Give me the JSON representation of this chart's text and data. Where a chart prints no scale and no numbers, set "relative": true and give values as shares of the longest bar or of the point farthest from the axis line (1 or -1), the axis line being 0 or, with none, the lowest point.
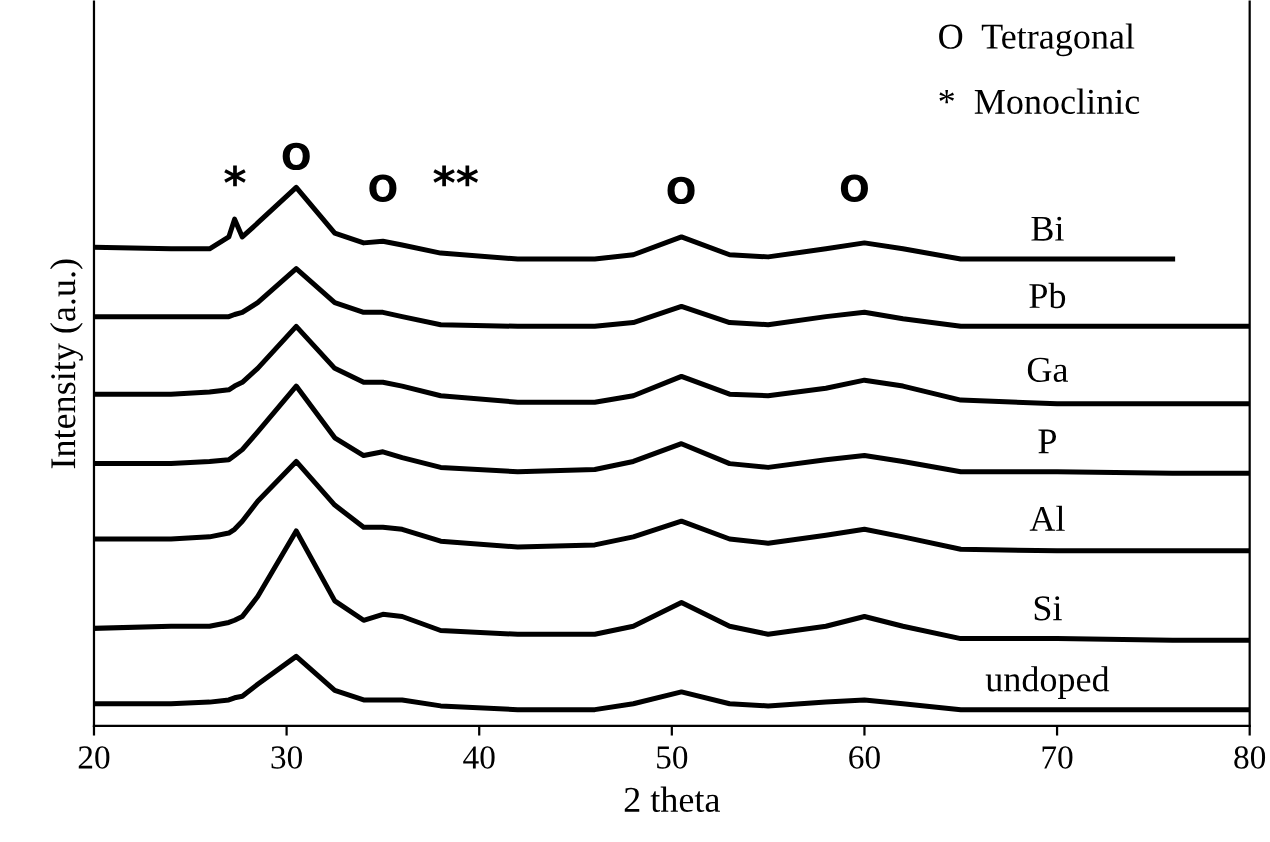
{
  "chart_data": {
    "type": "line",
    "relative": true,
    "xlabel": "2 theta",
    "ylabel": "Intensity (a.u.)",
    "xlim": [
      20,
      80
    ],
    "xticks": [
      20,
      30,
      40,
      50,
      60,
      70,
      80
    ],
    "grid": false,
    "marker": "none",
    "line_style": "solid",
    "x": [
      20,
      24,
      26,
      27,
      27.3,
      27.7,
      28.5,
      30.5,
      32.5,
      34,
      35,
      36,
      38,
      42,
      46,
      48,
      50.5,
      53,
      55,
      58,
      60,
      62,
      65,
      70,
      76,
      80
    ],
    "series": [
      {
        "name": "Bi",
        "color": "#000000",
        "values": [
          0.889,
          0.886,
          0.886,
          0.908,
          0.941,
          0.908,
          0.934,
          1.0,
          0.915,
          0.897,
          0.9,
          0.893,
          0.878,
          0.867,
          0.867,
          0.875,
          0.908,
          0.875,
          0.871,
          0.886,
          0.897,
          0.886,
          0.867,
          0.867,
          0.867,
          null
        ]
      },
      {
        "name": "Pb",
        "color": "#000000",
        "values": [
          0.76,
          0.76,
          0.76,
          0.76,
          0.764,
          0.768,
          0.786,
          0.849,
          0.786,
          0.768,
          0.768,
          0.76,
          0.745,
          0.742,
          0.742,
          0.749,
          0.779,
          0.749,
          0.745,
          0.76,
          0.768,
          0.756,
          0.742,
          0.742,
          0.742,
          0.742
        ]
      },
      {
        "name": "Ga",
        "color": "#000000",
        "values": [
          0.616,
          0.616,
          0.62,
          0.624,
          0.631,
          0.638,
          0.664,
          0.742,
          0.664,
          0.638,
          0.638,
          0.631,
          0.613,
          0.601,
          0.601,
          0.613,
          0.649,
          0.616,
          0.613,
          0.627,
          0.642,
          0.631,
          0.605,
          0.598,
          0.598,
          0.598
        ]
      },
      {
        "name": "P",
        "color": "#000000",
        "values": [
          0.487,
          0.487,
          0.491,
          0.494,
          0.502,
          0.513,
          0.546,
          0.631,
          0.535,
          0.502,
          0.509,
          0.498,
          0.48,
          0.472,
          0.476,
          0.491,
          0.524,
          0.487,
          0.48,
          0.494,
          0.502,
          0.491,
          0.472,
          0.472,
          0.469,
          0.469
        ]
      },
      {
        "name": "Al",
        "color": "#000000",
        "values": [
          0.347,
          0.347,
          0.351,
          0.358,
          0.365,
          0.38,
          0.417,
          0.491,
          0.41,
          0.369,
          0.369,
          0.365,
          0.343,
          0.332,
          0.336,
          0.351,
          0.38,
          0.347,
          0.339,
          0.354,
          0.365,
          0.351,
          0.328,
          0.325,
          0.325,
          0.325
        ]
      },
      {
        "name": "Si",
        "color": "#000000",
        "values": [
          0.181,
          0.185,
          0.185,
          0.192,
          0.196,
          0.203,
          0.24,
          0.362,
          0.232,
          0.196,
          0.207,
          0.203,
          0.177,
          0.17,
          0.17,
          0.185,
          0.229,
          0.185,
          0.17,
          0.185,
          0.203,
          0.185,
          0.162,
          0.162,
          0.159,
          0.159
        ]
      },
      {
        "name": "undoped",
        "color": "#000000",
        "values": [
          0.041,
          0.041,
          0.044,
          0.048,
          0.052,
          0.055,
          0.077,
          0.129,
          0.066,
          0.048,
          0.048,
          0.048,
          0.037,
          0.03,
          0.03,
          0.041,
          0.063,
          0.041,
          0.037,
          0.044,
          0.048,
          0.041,
          0.03,
          0.03,
          0.03,
          0.03
        ]
      }
    ],
    "annotations": [
      "*",
      "O",
      "O",
      "**",
      "O",
      "O",
      "O  Tetragonal",
      "*  Monoclinic"
    ]
  }
}
